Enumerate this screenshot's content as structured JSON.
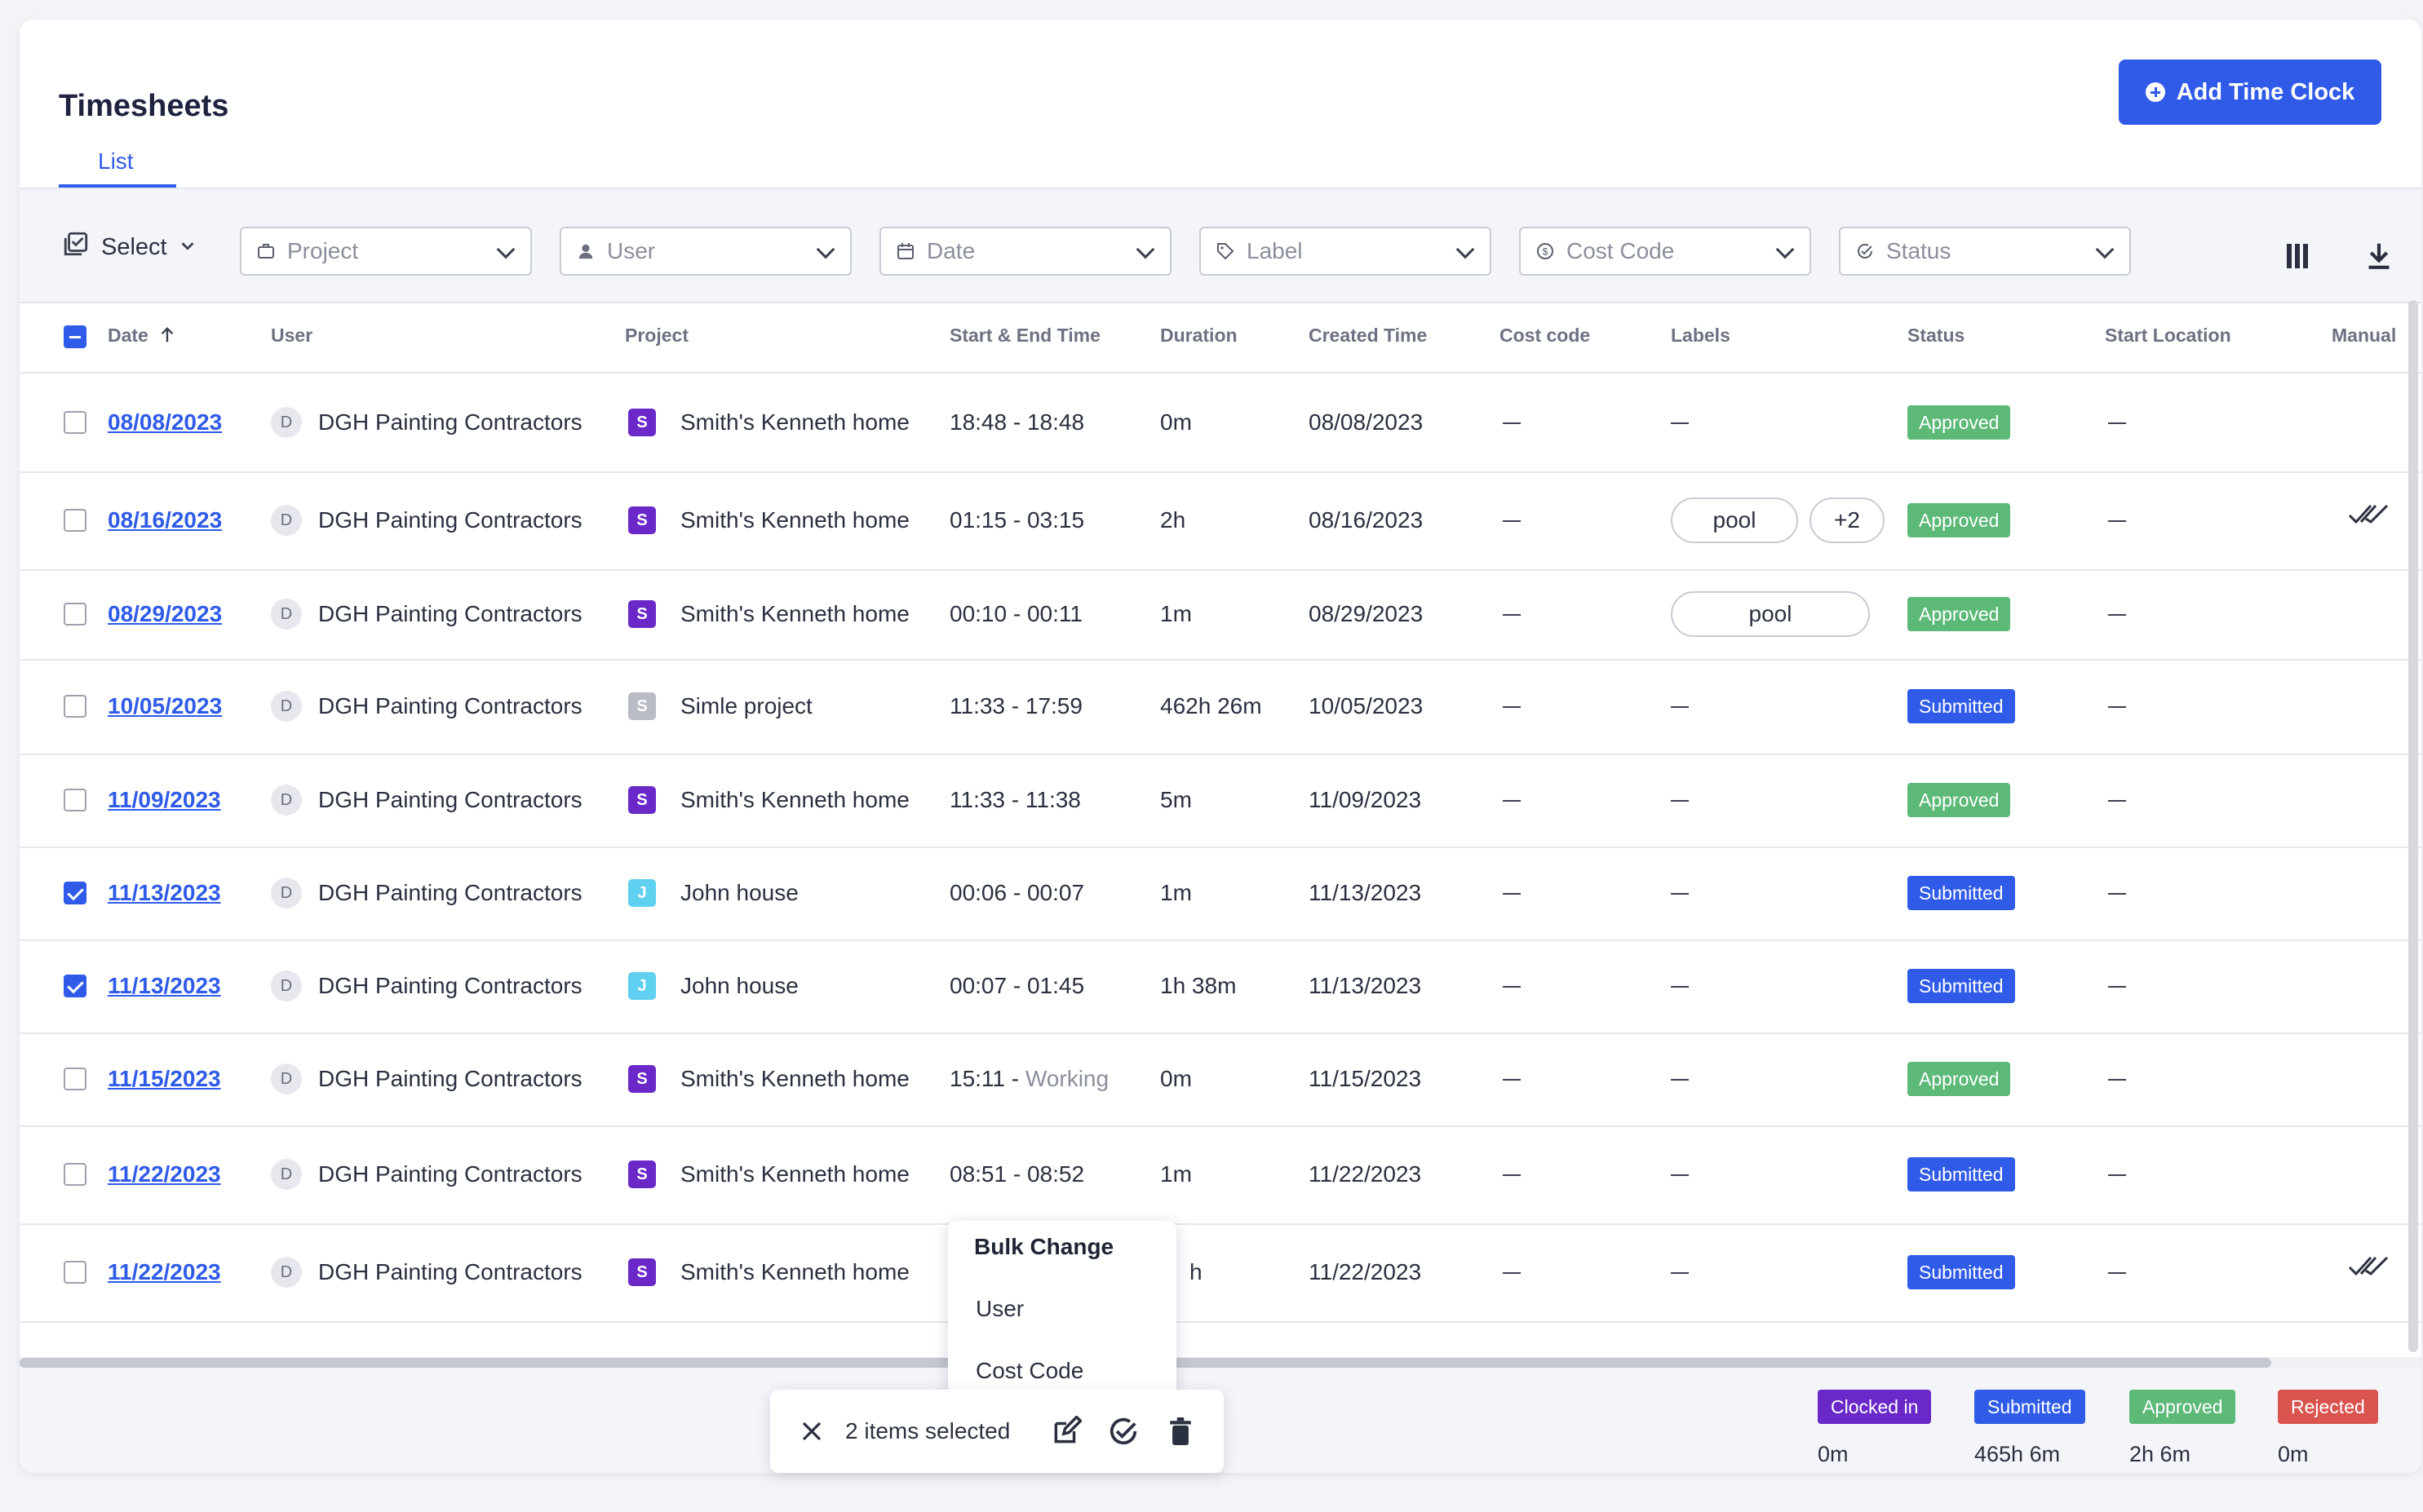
{
  "header": {
    "title": "Timesheets",
    "add_button": "Add Time Clock",
    "tab": "List"
  },
  "filters": {
    "select_label": "Select",
    "project": "Project",
    "user": "User",
    "date": "Date",
    "label": "Label",
    "cost_code": "Cost Code",
    "status": "Status"
  },
  "columns": {
    "date": "Date",
    "user": "User",
    "project": "Project",
    "time": "Start & End Time",
    "duration": "Duration",
    "created": "Created Time",
    "cost_code": "Cost code",
    "labels": "Labels",
    "status": "Status",
    "start_location": "Start Location",
    "manual": "Manual"
  },
  "colors": {
    "accent": "#2f5be8",
    "approved": "#5cb978",
    "submitted": "#2f5be8",
    "clocked_in": "#6a28c9",
    "rejected": "#d9534f",
    "project_s": "#6a28c9",
    "project_s_grey": "#b9bcc4",
    "project_j": "#5fd0f0"
  },
  "rows": [
    {
      "date": "08/08/2023",
      "user_initial": "D",
      "user": "DGH Painting Contractors",
      "project_initial": "S",
      "project": "Smith's Kenneth home",
      "start": "18:48 - 18:48",
      "working": "",
      "duration": "0m",
      "created": "08/08/2023",
      "cost_code": "—",
      "labels": [],
      "status": "Approved",
      "location": "—",
      "manual": false,
      "checked": false
    },
    {
      "date": "08/16/2023",
      "user_initial": "D",
      "user": "DGH Painting Contractors",
      "project_initial": "S",
      "project": "Smith's Kenneth home",
      "start": "01:15 - 03:15",
      "working": "",
      "duration": "2h",
      "created": "08/16/2023",
      "cost_code": "—",
      "labels": [
        "pool",
        "+2"
      ],
      "status": "Approved",
      "location": "—",
      "manual": true,
      "checked": false
    },
    {
      "date": "08/29/2023",
      "user_initial": "D",
      "user": "DGH Painting Contractors",
      "project_initial": "S",
      "project": "Smith's Kenneth home",
      "start": "00:10 - 00:11",
      "working": "",
      "duration": "1m",
      "created": "08/29/2023",
      "cost_code": "—",
      "labels": [
        "pool"
      ],
      "status": "Approved",
      "location": "—",
      "manual": false,
      "checked": false
    },
    {
      "date": "10/05/2023",
      "user_initial": "D",
      "user": "DGH Painting Contractors",
      "project_initial": "S",
      "project": "Simle project",
      "start": "11:33 - 17:59",
      "working": "",
      "duration": "462h 26m",
      "created": "10/05/2023",
      "cost_code": "—",
      "labels": [],
      "status": "Submitted",
      "location": "—",
      "manual": false,
      "checked": false
    },
    {
      "date": "11/09/2023",
      "user_initial": "D",
      "user": "DGH Painting Contractors",
      "project_initial": "S",
      "project": "Smith's Kenneth home",
      "start": "11:33 - 11:38",
      "working": "",
      "duration": "5m",
      "created": "11/09/2023",
      "cost_code": "—",
      "labels": [],
      "status": "Approved",
      "location": "—",
      "manual": false,
      "checked": false
    },
    {
      "date": "11/13/2023",
      "user_initial": "D",
      "user": "DGH Painting Contractors",
      "project_initial": "J",
      "project": "John house",
      "start": "00:06 - 00:07",
      "working": "",
      "duration": "1m",
      "created": "11/13/2023",
      "cost_code": "—",
      "labels": [],
      "status": "Submitted",
      "location": "—",
      "manual": false,
      "checked": true
    },
    {
      "date": "11/13/2023",
      "user_initial": "D",
      "user": "DGH Painting Contractors",
      "project_initial": "J",
      "project": "John house",
      "start": "00:07 - 01:45",
      "working": "",
      "duration": "1h 38m",
      "created": "11/13/2023",
      "cost_code": "—",
      "labels": [],
      "status": "Submitted",
      "location": "—",
      "manual": false,
      "checked": true
    },
    {
      "date": "11/15/2023",
      "user_initial": "D",
      "user": "DGH Painting Contractors",
      "project_initial": "S",
      "project": "Smith's Kenneth home",
      "start": "15:11 - ",
      "working": "Working",
      "duration": "0m",
      "created": "11/15/2023",
      "cost_code": "—",
      "labels": [],
      "status": "Approved",
      "location": "—",
      "manual": false,
      "checked": false
    },
    {
      "date": "11/22/2023",
      "user_initial": "D",
      "user": "DGH Painting Contractors",
      "project_initial": "S",
      "project": "Smith's Kenneth home",
      "start": "08:51 - 08:52",
      "working": "",
      "duration": "1m",
      "created": "11/22/2023",
      "cost_code": "—",
      "labels": [],
      "status": "Submitted",
      "location": "—",
      "manual": false,
      "checked": false
    },
    {
      "date": "11/22/2023",
      "user_initial": "D",
      "user": "DGH Painting Contractors",
      "project_initial": "S",
      "project": "Smith's Kenneth home",
      "start": "",
      "working": "",
      "duration": "h",
      "created": "11/22/2023",
      "cost_code": "—",
      "labels": [],
      "status": "Submitted",
      "location": "—",
      "manual": true,
      "checked": false
    }
  ],
  "menu": {
    "title": "Bulk Change",
    "items": [
      "User",
      "Cost Code"
    ]
  },
  "bulk": {
    "selected_text": "2 items selected"
  },
  "legend": [
    {
      "label": "Clocked in",
      "value": "0m",
      "color": "#6a28c9"
    },
    {
      "label": "Submitted",
      "value": "465h 6m",
      "color": "#2f5be8"
    },
    {
      "label": "Approved",
      "value": "2h 6m",
      "color": "#5cb978"
    },
    {
      "label": "Rejected",
      "value": "0m",
      "color": "#d9534f"
    }
  ]
}
